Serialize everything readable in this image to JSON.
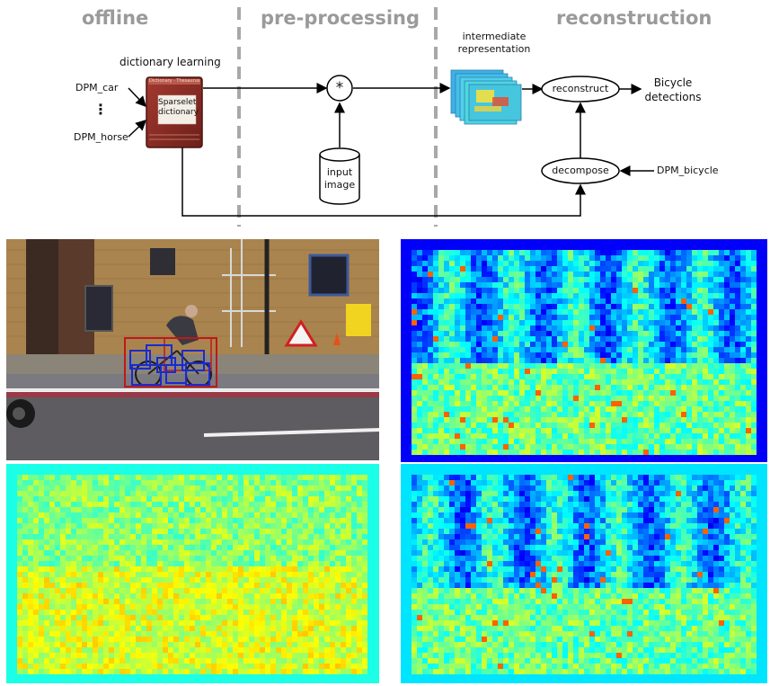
{
  "sections": {
    "offline": "offline",
    "preprocessing": "pre-processing",
    "reconstruction": "reconstruction"
  },
  "labels": {
    "dictionary_learning": "dictionary learning",
    "dpm_car": "DPM_car",
    "dots": "⋮",
    "dpm_horse": "DPM_horse",
    "book_title": "Sparselet dictionary",
    "book_top": "Dictionary · Thesaurus",
    "convolve": "*",
    "input_image": "input image",
    "intermediate": "intermediate representation",
    "reconstruct": "reconstruct",
    "bicycle_detections": "Bicycle detections",
    "decompose": "decompose",
    "dpm_bicycle": "DPM_bicycle"
  },
  "colors": {
    "section_header": "#9a9a9a",
    "separator": "#a8a8a8",
    "book": "#8e2e26",
    "detection_root": "#c01818",
    "detection_part": "#1a2ad0"
  },
  "panels": {
    "photo": "street photo with cyclist and detection boxes",
    "heatmaps": [
      "jet-colormap response map",
      "jet-colormap response map",
      "jet-colormap response map"
    ]
  }
}
